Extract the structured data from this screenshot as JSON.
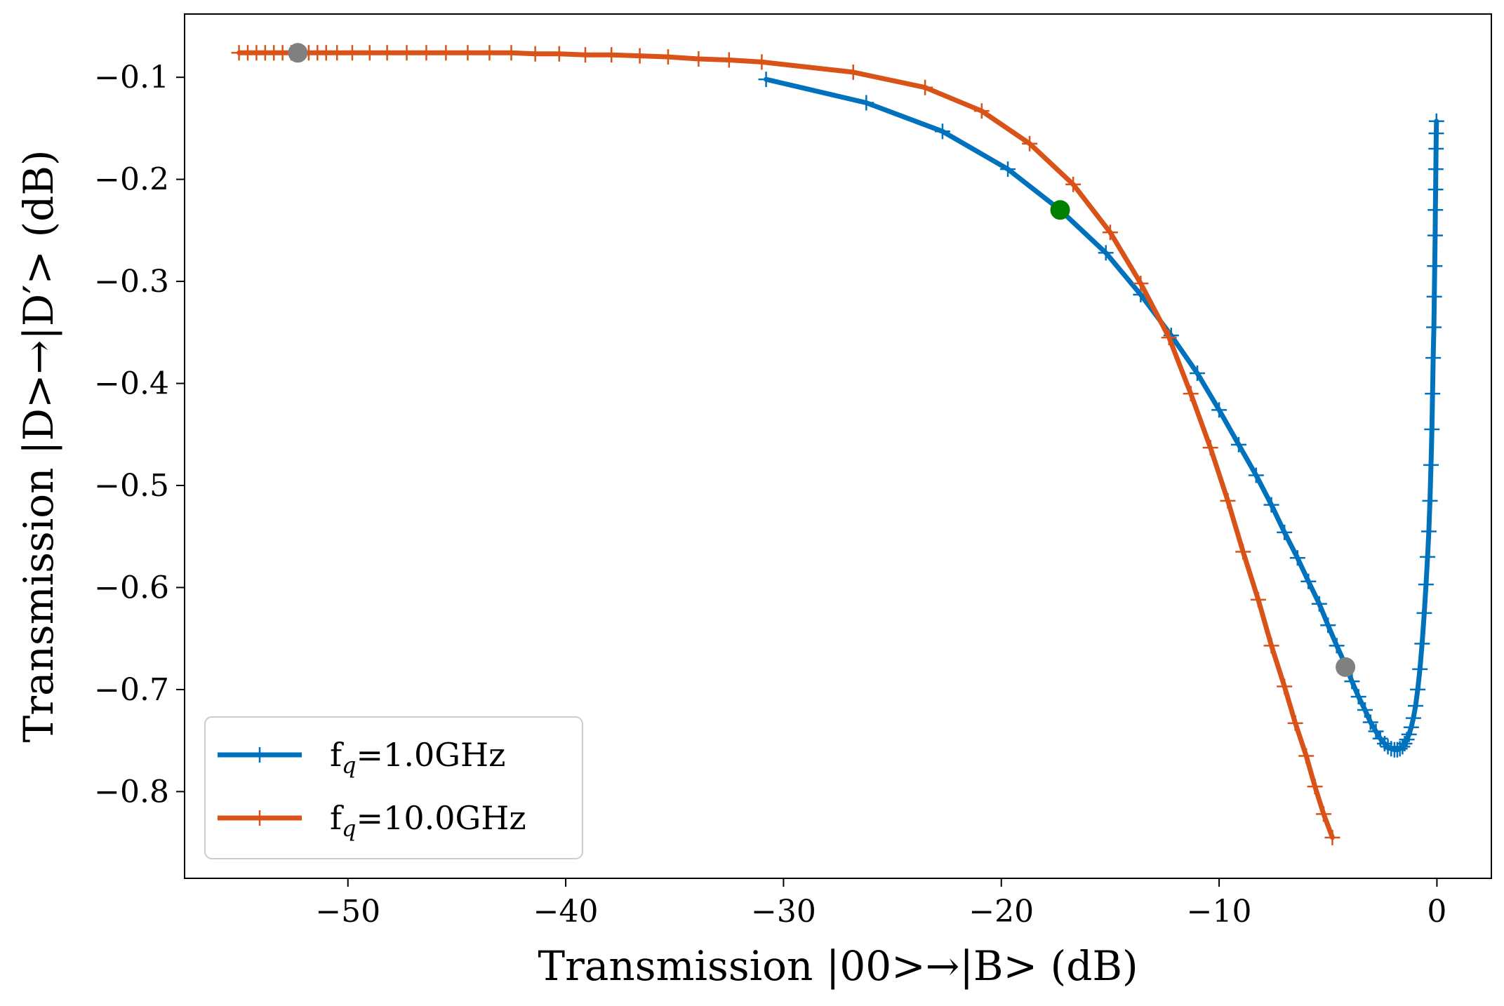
{
  "chart_data": {
    "type": "line",
    "title": "",
    "xlabel": "Transmission |00>→|B> (dB)",
    "ylabel": "Transmission |D>→|D′> (dB)",
    "xlim": [
      -57.5,
      2.5
    ],
    "ylim": [
      -0.885,
      -0.038
    ],
    "xticks": [
      -50,
      -40,
      -30,
      -20,
      -10,
      0
    ],
    "xtick_labels": [
      "−50",
      "−40",
      "−30",
      "−20",
      "−10",
      "0"
    ],
    "yticks": [
      -0.1,
      -0.2,
      -0.3,
      -0.4,
      -0.5,
      -0.6,
      -0.7,
      -0.8
    ],
    "ytick_labels": [
      "−0.1",
      "−0.2",
      "−0.3",
      "−0.4",
      "−0.5",
      "−0.6",
      "−0.7",
      "−0.8"
    ],
    "legend_position": "lower-left",
    "series": [
      {
        "name": "f_q=1.0GHz",
        "legend_main": "f",
        "legend_sub": "q",
        "legend_rest": "=1.0GHz",
        "color": "#0072BD",
        "marker": "+",
        "x": [
          -30.8,
          -26.2,
          -22.7,
          -19.7,
          -17.3,
          -15.2,
          -13.6,
          -12.2,
          -11.0,
          -10.0,
          -9.1,
          -8.3,
          -7.6,
          -7.0,
          -6.4,
          -5.9,
          -5.4,
          -5.0,
          -4.6,
          -4.2,
          -3.9,
          -3.6,
          -3.3,
          -3.05,
          -2.8,
          -2.6,
          -2.4,
          -2.25,
          -2.1,
          -1.95,
          -1.82,
          -1.7,
          -1.58,
          -1.48,
          -1.38,
          -1.28,
          -1.18,
          -1.08,
          -0.98,
          -0.88,
          -0.78,
          -0.68,
          -0.58,
          -0.5,
          -0.43,
          -0.37,
          -0.32,
          -0.27,
          -0.23,
          -0.2,
          -0.17,
          -0.14,
          -0.12,
          -0.1,
          -0.08,
          -0.07,
          -0.06,
          -0.05,
          -0.04,
          -0.03,
          -0.02
        ],
        "y": [
          -0.102,
          -0.125,
          -0.153,
          -0.19,
          -0.23,
          -0.272,
          -0.313,
          -0.353,
          -0.39,
          -0.426,
          -0.46,
          -0.49,
          -0.519,
          -0.546,
          -0.571,
          -0.594,
          -0.616,
          -0.637,
          -0.657,
          -0.676,
          -0.692,
          -0.707,
          -0.72,
          -0.732,
          -0.741,
          -0.748,
          -0.753,
          -0.756,
          -0.758,
          -0.759,
          -0.759,
          -0.758,
          -0.756,
          -0.753,
          -0.749,
          -0.744,
          -0.737,
          -0.728,
          -0.716,
          -0.7,
          -0.68,
          -0.655,
          -0.625,
          -0.597,
          -0.57,
          -0.545,
          -0.515,
          -0.48,
          -0.445,
          -0.41,
          -0.375,
          -0.345,
          -0.315,
          -0.285,
          -0.255,
          -0.23,
          -0.21,
          -0.19,
          -0.17,
          -0.155,
          -0.143
        ]
      },
      {
        "name": "f_q=10.0GHz",
        "legend_main": "f",
        "legend_sub": "q",
        "legend_rest": "=10.0GHz",
        "color": "#D95319",
        "marker": "+",
        "x": [
          -55.0,
          -54.6,
          -54.2,
          -53.8,
          -53.4,
          -53.0,
          -52.6,
          -52.2,
          -51.8,
          -51.4,
          -51.0,
          -50.5,
          -49.8,
          -49.0,
          -48.2,
          -47.3,
          -46.4,
          -45.5,
          -44.5,
          -43.5,
          -42.5,
          -41.4,
          -40.3,
          -39.1,
          -37.9,
          -36.6,
          -35.3,
          -33.9,
          -32.5,
          -31.0,
          -26.8,
          -23.5,
          -20.9,
          -18.7,
          -16.7,
          -15.0,
          -13.6,
          -12.3,
          -11.3,
          -10.4,
          -9.6,
          -8.9,
          -8.2,
          -7.6,
          -7.0,
          -6.5,
          -6.0,
          -5.6,
          -5.2,
          -4.8
        ],
        "y": [
          -0.076,
          -0.076,
          -0.076,
          -0.076,
          -0.076,
          -0.076,
          -0.076,
          -0.076,
          -0.076,
          -0.076,
          -0.076,
          -0.076,
          -0.076,
          -0.076,
          -0.076,
          -0.076,
          -0.076,
          -0.076,
          -0.076,
          -0.076,
          -0.076,
          -0.077,
          -0.077,
          -0.078,
          -0.078,
          -0.079,
          -0.08,
          -0.082,
          -0.083,
          -0.085,
          -0.095,
          -0.11,
          -0.133,
          -0.165,
          -0.205,
          -0.252,
          -0.302,
          -0.355,
          -0.41,
          -0.463,
          -0.515,
          -0.565,
          -0.612,
          -0.657,
          -0.697,
          -0.733,
          -0.765,
          -0.795,
          -0.822,
          -0.845
        ]
      }
    ],
    "highlight_points": [
      {
        "name": "start-point-10ghz",
        "x": -52.3,
        "y": -0.076,
        "color": "#808080"
      },
      {
        "name": "green-marker-1ghz",
        "x": -17.3,
        "y": -0.23,
        "color": "#008000"
      },
      {
        "name": "start-point-1ghz",
        "x": -4.2,
        "y": -0.678,
        "color": "#808080"
      }
    ]
  }
}
